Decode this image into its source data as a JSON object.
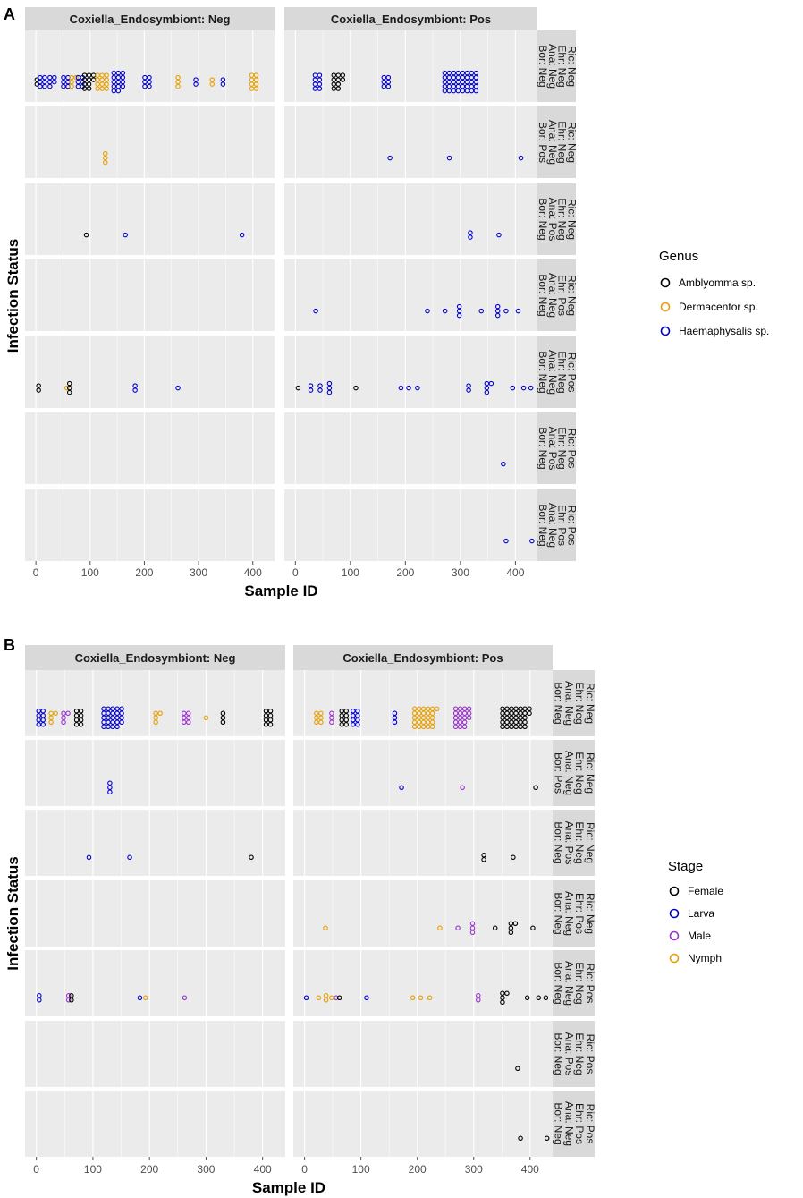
{
  "chart_data": [
    {
      "type": "scatter",
      "panel_label": "A",
      "column_facets": [
        "Coxiella_Endosymbiont: Neg",
        "Coxiella_Endosymbiont: Pos"
      ],
      "row_facets": [
        [
          "Bor: Neg",
          "Ana: Neg",
          "Ehr: Neg",
          "Ric: Neg"
        ],
        [
          "Bor: Pos",
          "Ana: Neg",
          "Ehr: Neg",
          "Ric: Neg"
        ],
        [
          "Bor: Neg",
          "Ana: Pos",
          "Ehr: Neg",
          "Ric: Neg"
        ],
        [
          "Bor: Neg",
          "Ana: Neg",
          "Ehr: Pos",
          "Ric: Neg"
        ],
        [
          "Bor: Neg",
          "Ana: Neg",
          "Ehr: Neg",
          "Ric: Pos"
        ],
        [
          "Bor: Neg",
          "Ana: Pos",
          "Ehr: Neg",
          "Ric: Pos"
        ],
        [
          "Bor: Neg",
          "Ana: Neg",
          "Ehr: Pos",
          "Ric: Pos"
        ]
      ],
      "xlabel": "Sample ID",
      "ylabel": "Infection Status",
      "xlim": [
        -20,
        440
      ],
      "xticks": [
        0,
        100,
        200,
        300,
        400
      ],
      "legend": {
        "title": "Genus",
        "position": "right",
        "entries": [
          {
            "label": "Amblyomma sp.",
            "color": "#000000"
          },
          {
            "label": "Dermacentor sp.",
            "color": "#E69F00"
          },
          {
            "label": "Haemaphysalis sp.",
            "color": "#0000CC"
          }
        ]
      },
      "series": [
        {
          "col": 0,
          "row": 0,
          "clusters": [
            {
              "color": "#000000",
              "x": 2,
              "count": 2
            },
            {
              "color": "#0000CC",
              "x": 12,
              "count": 6
            },
            {
              "color": "#0000CC",
              "x": 30,
              "count": 5
            },
            {
              "color": "#0000CC",
              "x": 55,
              "count": 6
            },
            {
              "color": "#E69F00",
              "x": 70,
              "count": 4
            },
            {
              "color": "#0000CC",
              "x": 82,
              "count": 6
            },
            {
              "color": "#000000",
              "x": 98,
              "count": 10
            },
            {
              "color": "#E69F00",
              "x": 122,
              "count": 12
            },
            {
              "color": "#0000CC",
              "x": 152,
              "count": 14
            },
            {
              "color": "#0000CC",
              "x": 205,
              "count": 6
            },
            {
              "color": "#E69F00",
              "x": 262,
              "count": 3
            },
            {
              "color": "#0000CC",
              "x": 295,
              "count": 2
            },
            {
              "color": "#E69F00",
              "x": 325,
              "count": 2
            },
            {
              "color": "#0000CC",
              "x": 345,
              "count": 2
            },
            {
              "color": "#E69F00",
              "x": 402,
              "count": 8
            }
          ]
        },
        {
          "col": 1,
          "row": 0,
          "clusters": [
            {
              "color": "#0000CC",
              "x": 40,
              "count": 8
            },
            {
              "color": "#000000",
              "x": 78,
              "count": 10
            },
            {
              "color": "#0000CC",
              "x": 165,
              "count": 6
            },
            {
              "color": "#0000CC",
              "x": 300,
              "count": 40
            }
          ]
        },
        {
          "col": 0,
          "row": 1,
          "clusters": [
            {
              "color": "#E69F00",
              "x": 128,
              "count": 3
            }
          ]
        },
        {
          "col": 1,
          "row": 1,
          "clusters": [
            {
              "color": "#0000CC",
              "x": 172,
              "count": 1
            },
            {
              "color": "#0000CC",
              "x": 280,
              "count": 1
            },
            {
              "color": "#0000CC",
              "x": 410,
              "count": 1
            }
          ]
        },
        {
          "col": 0,
          "row": 2,
          "clusters": [
            {
              "color": "#000000",
              "x": 93,
              "count": 1
            },
            {
              "color": "#0000CC",
              "x": 165,
              "count": 1
            },
            {
              "color": "#0000CC",
              "x": 380,
              "count": 1
            }
          ]
        },
        {
          "col": 1,
          "row": 2,
          "clusters": [
            {
              "color": "#0000CC",
              "x": 318,
              "count": 2
            },
            {
              "color": "#0000CC",
              "x": 370,
              "count": 1
            }
          ]
        },
        {
          "col": 1,
          "row": 3,
          "clusters": [
            {
              "color": "#0000CC",
              "x": 37,
              "count": 1
            },
            {
              "color": "#0000CC",
              "x": 240,
              "count": 1
            },
            {
              "color": "#0000CC",
              "x": 272,
              "count": 1
            },
            {
              "color": "#0000CC",
              "x": 298,
              "count": 3
            },
            {
              "color": "#0000CC",
              "x": 338,
              "count": 1
            },
            {
              "color": "#0000CC",
              "x": 368,
              "count": 3
            },
            {
              "color": "#0000CC",
              "x": 383,
              "count": 1
            },
            {
              "color": "#0000CC",
              "x": 405,
              "count": 1
            }
          ]
        },
        {
          "col": 0,
          "row": 4,
          "clusters": [
            {
              "color": "#000000",
              "x": 5,
              "count": 2
            },
            {
              "color": "#E69F00",
              "x": 57,
              "count": 1
            },
            {
              "color": "#000000",
              "x": 62,
              "count": 3
            },
            {
              "color": "#0000CC",
              "x": 183,
              "count": 2
            },
            {
              "color": "#0000CC",
              "x": 262,
              "count": 1
            }
          ]
        },
        {
          "col": 1,
          "row": 4,
          "clusters": [
            {
              "color": "#000000",
              "x": 5,
              "count": 1
            },
            {
              "color": "#0000CC",
              "x": 28,
              "count": 2
            },
            {
              "color": "#0000CC",
              "x": 45,
              "count": 2
            },
            {
              "color": "#0000CC",
              "x": 62,
              "count": 3
            },
            {
              "color": "#000000",
              "x": 110,
              "count": 1
            },
            {
              "color": "#0000CC",
              "x": 192,
              "count": 1
            },
            {
              "color": "#0000CC",
              "x": 206,
              "count": 1
            },
            {
              "color": "#0000CC",
              "x": 222,
              "count": 1
            },
            {
              "color": "#0000CC",
              "x": 315,
              "count": 2
            },
            {
              "color": "#0000CC",
              "x": 352,
              "count": 4
            },
            {
              "color": "#0000CC",
              "x": 395,
              "count": 1
            },
            {
              "color": "#0000CC",
              "x": 415,
              "count": 1
            },
            {
              "color": "#0000CC",
              "x": 428,
              "count": 1
            }
          ]
        },
        {
          "col": 1,
          "row": 5,
          "clusters": [
            {
              "color": "#0000CC",
              "x": 378,
              "count": 1
            }
          ]
        },
        {
          "col": 1,
          "row": 6,
          "clusters": [
            {
              "color": "#0000CC",
              "x": 383,
              "count": 1
            },
            {
              "color": "#0000CC",
              "x": 430,
              "count": 1
            }
          ]
        }
      ]
    },
    {
      "type": "scatter",
      "panel_label": "B",
      "column_facets": [
        "Coxiella_Endosymbiont: Neg",
        "Coxiella_Endosymbiont: Pos"
      ],
      "row_facets": [
        [
          "Bor: Neg",
          "Ana: Neg",
          "Ehr: Neg",
          "Ric: Neg"
        ],
        [
          "Bor: Pos",
          "Ana: Neg",
          "Ehr: Neg",
          "Ric: Neg"
        ],
        [
          "Bor: Neg",
          "Ana: Pos",
          "Ehr: Neg",
          "Ric: Neg"
        ],
        [
          "Bor: Neg",
          "Ana: Neg",
          "Ehr: Pos",
          "Ric: Neg"
        ],
        [
          "Bor: Neg",
          "Ana: Neg",
          "Ehr: Neg",
          "Ric: Pos"
        ],
        [
          "Bor: Neg",
          "Ana: Pos",
          "Ehr: Neg",
          "Ric: Pos"
        ],
        [
          "Bor: Neg",
          "Ana: Neg",
          "Ehr: Pos",
          "Ric: Pos"
        ]
      ],
      "xlabel": "Sample ID",
      "ylabel": "Infection Status",
      "xlim": [
        -20,
        440
      ],
      "xticks": [
        0,
        100,
        200,
        300,
        400
      ],
      "legend": {
        "title": "Stage",
        "position": "right",
        "entries": [
          {
            "label": "Female",
            "color": "#000000"
          },
          {
            "label": "Larva",
            "color": "#0000CC"
          },
          {
            "label": "Male",
            "color": "#9933CC"
          },
          {
            "label": "Nymph",
            "color": "#E69F00"
          }
        ]
      },
      "series": [
        {
          "col": 0,
          "row": 0,
          "clusters": [
            {
              "color": "#0000CC",
              "x": 8,
              "count": 8
            },
            {
              "color": "#E69F00",
              "x": 30,
              "count": 4
            },
            {
              "color": "#9933CC",
              "x": 52,
              "count": 4
            },
            {
              "color": "#000000",
              "x": 75,
              "count": 8
            },
            {
              "color": "#0000CC",
              "x": 135,
              "count": 24
            },
            {
              "color": "#E69F00",
              "x": 215,
              "count": 4
            },
            {
              "color": "#9933CC",
              "x": 265,
              "count": 6
            },
            {
              "color": "#E69F00",
              "x": 300,
              "count": 1
            },
            {
              "color": "#000000",
              "x": 330,
              "count": 3
            },
            {
              "color": "#000000",
              "x": 410,
              "count": 8
            }
          ]
        },
        {
          "col": 1,
          "row": 0,
          "clusters": [
            {
              "color": "#E69F00",
              "x": 25,
              "count": 6
            },
            {
              "color": "#9933CC",
              "x": 48,
              "count": 3
            },
            {
              "color": "#000000",
              "x": 70,
              "count": 8
            },
            {
              "color": "#0000CC",
              "x": 90,
              "count": 8
            },
            {
              "color": "#0000CC",
              "x": 160,
              "count": 3
            },
            {
              "color": "#E69F00",
              "x": 215,
              "count": 26
            },
            {
              "color": "#9933CC",
              "x": 280,
              "count": 18
            },
            {
              "color": "#000000",
              "x": 375,
              "count": 32
            }
          ]
        },
        {
          "col": 0,
          "row": 1,
          "clusters": [
            {
              "color": "#0000CC",
              "x": 130,
              "count": 3
            }
          ]
        },
        {
          "col": 1,
          "row": 1,
          "clusters": [
            {
              "color": "#0000CC",
              "x": 172,
              "count": 1
            },
            {
              "color": "#9933CC",
              "x": 280,
              "count": 1
            },
            {
              "color": "#000000",
              "x": 410,
              "count": 1
            }
          ]
        },
        {
          "col": 0,
          "row": 2,
          "clusters": [
            {
              "color": "#0000CC",
              "x": 93,
              "count": 1
            },
            {
              "color": "#0000CC",
              "x": 165,
              "count": 1
            },
            {
              "color": "#000000",
              "x": 380,
              "count": 1
            }
          ]
        },
        {
          "col": 1,
          "row": 2,
          "clusters": [
            {
              "color": "#000000",
              "x": 318,
              "count": 2
            },
            {
              "color": "#000000",
              "x": 370,
              "count": 1
            }
          ]
        },
        {
          "col": 1,
          "row": 3,
          "clusters": [
            {
              "color": "#E69F00",
              "x": 37,
              "count": 1
            },
            {
              "color": "#E69F00",
              "x": 240,
              "count": 1
            },
            {
              "color": "#9933CC",
              "x": 272,
              "count": 1
            },
            {
              "color": "#9933CC",
              "x": 298,
              "count": 3
            },
            {
              "color": "#000000",
              "x": 338,
              "count": 1
            },
            {
              "color": "#000000",
              "x": 370,
              "count": 4
            },
            {
              "color": "#000000",
              "x": 405,
              "count": 1
            }
          ]
        },
        {
          "col": 0,
          "row": 4,
          "clusters": [
            {
              "color": "#0000CC",
              "x": 5,
              "count": 2
            },
            {
              "color": "#9933CC",
              "x": 57,
              "count": 2
            },
            {
              "color": "#000000",
              "x": 62,
              "count": 2
            },
            {
              "color": "#0000CC",
              "x": 183,
              "count": 1
            },
            {
              "color": "#E69F00",
              "x": 193,
              "count": 1
            },
            {
              "color": "#9933CC",
              "x": 262,
              "count": 1
            }
          ]
        },
        {
          "col": 1,
          "row": 4,
          "clusters": [
            {
              "color": "#0000CC",
              "x": 3,
              "count": 1
            },
            {
              "color": "#E69F00",
              "x": 25,
              "count": 1
            },
            {
              "color": "#E69F00",
              "x": 38,
              "count": 2
            },
            {
              "color": "#E69F00",
              "x": 48,
              "count": 1
            },
            {
              "color": "#9933CC",
              "x": 56,
              "count": 1
            },
            {
              "color": "#000000",
              "x": 62,
              "count": 1
            },
            {
              "color": "#0000CC",
              "x": 110,
              "count": 1
            },
            {
              "color": "#E69F00",
              "x": 192,
              "count": 1
            },
            {
              "color": "#E69F00",
              "x": 206,
              "count": 1
            },
            {
              "color": "#E69F00",
              "x": 222,
              "count": 1
            },
            {
              "color": "#9933CC",
              "x": 308,
              "count": 2
            },
            {
              "color": "#000000",
              "x": 355,
              "count": 4
            },
            {
              "color": "#000000",
              "x": 395,
              "count": 1
            },
            {
              "color": "#000000",
              "x": 415,
              "count": 1
            },
            {
              "color": "#000000",
              "x": 428,
              "count": 1
            }
          ]
        },
        {
          "col": 1,
          "row": 5,
          "clusters": [
            {
              "color": "#000000",
              "x": 378,
              "count": 1
            }
          ]
        },
        {
          "col": 1,
          "row": 6,
          "clusters": [
            {
              "color": "#000000",
              "x": 383,
              "count": 1
            },
            {
              "color": "#000000",
              "x": 430,
              "count": 1
            }
          ]
        }
      ]
    }
  ]
}
